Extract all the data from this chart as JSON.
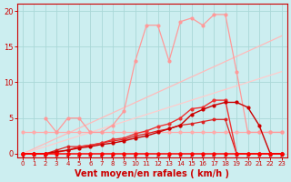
{
  "background_color": "#cceef0",
  "grid_color": "#aad8d8",
  "xlabel": "Vent moyen/en rafales ( km/h )",
  "xlabel_color": "#cc0000",
  "tick_label_color": "#cc0000",
  "axis_label_fontsize": 7,
  "tick_fontsize": 5.5,
  "xlim": [
    -0.5,
    23.5
  ],
  "ylim": [
    -0.5,
    21
  ],
  "yticks": [
    0,
    5,
    10,
    15,
    20
  ],
  "xticks": [
    0,
    1,
    2,
    3,
    4,
    5,
    6,
    7,
    8,
    9,
    10,
    11,
    12,
    13,
    14,
    15,
    16,
    17,
    18,
    19,
    20,
    21,
    22,
    23
  ],
  "lines": [
    {
      "x": [
        0,
        23
      ],
      "y": [
        0,
        16.5
      ],
      "color": "#ffbbbb",
      "linewidth": 0.9,
      "marker": null,
      "markersize": 0,
      "zorder": 2
    },
    {
      "x": [
        0,
        23
      ],
      "y": [
        0,
        11.5
      ],
      "color": "#ffcccc",
      "linewidth": 0.9,
      "marker": null,
      "markersize": 0,
      "zorder": 2
    },
    {
      "x": [
        0,
        1,
        2,
        3,
        4,
        5,
        6,
        7,
        8,
        9,
        10,
        11,
        12,
        13,
        14,
        15,
        16,
        17,
        18,
        19,
        20,
        21,
        22,
        23
      ],
      "y": [
        3,
        3,
        3,
        3,
        3,
        3,
        3,
        3,
        3,
        3,
        3,
        3,
        3,
        3,
        3,
        3,
        3,
        3,
        3,
        3,
        3,
        3,
        3,
        3
      ],
      "color": "#ffaaaa",
      "linewidth": 0.9,
      "marker": "o",
      "markersize": 2.0,
      "zorder": 3
    },
    {
      "x": [
        2,
        3,
        4,
        5,
        6,
        7,
        8,
        9,
        10,
        11,
        12,
        13,
        14,
        15,
        16,
        17,
        18,
        19,
        20,
        21,
        22,
        23
      ],
      "y": [
        5,
        3,
        5,
        5,
        3,
        3,
        4,
        6,
        13,
        18,
        18,
        13,
        18.5,
        19,
        18,
        19.5,
        19.5,
        11.5,
        3,
        3,
        3,
        3
      ],
      "color": "#ff9999",
      "linewidth": 0.9,
      "marker": "o",
      "markersize": 2.0,
      "zorder": 3
    },
    {
      "x": [
        0,
        1,
        2,
        3,
        4,
        5,
        6,
        7,
        8,
        9,
        10,
        11,
        12,
        13,
        14,
        15,
        16,
        17,
        18,
        19,
        20,
        21,
        22,
        23
      ],
      "y": [
        0,
        0,
        0,
        0.2,
        0.5,
        1,
        1.2,
        1.5,
        2,
        2.2,
        2.8,
        3.2,
        3.8,
        4.2,
        5,
        6.3,
        6.5,
        7.5,
        7.5,
        0,
        0,
        0,
        0,
        0
      ],
      "color": "#ee3333",
      "linewidth": 1.0,
      "marker": "o",
      "markersize": 2.0,
      "zorder": 5
    },
    {
      "x": [
        0,
        1,
        2,
        3,
        4,
        5,
        6,
        7,
        8,
        9,
        10,
        11,
        12,
        13,
        14,
        15,
        16,
        17,
        18,
        19,
        20,
        21,
        22,
        23
      ],
      "y": [
        0,
        0,
        0,
        0.3,
        0.5,
        0.8,
        1.0,
        1.3,
        1.5,
        1.8,
        2.2,
        2.5,
        3.0,
        3.5,
        4.0,
        5.5,
        6.2,
        6.8,
        7.2,
        7.2,
        6.5,
        4.0,
        0,
        0
      ],
      "color": "#cc0000",
      "linewidth": 1.0,
      "marker": "o",
      "markersize": 2.0,
      "zorder": 5
    },
    {
      "x": [
        0,
        1,
        2,
        3,
        4,
        5,
        6,
        7,
        8,
        9,
        10,
        11,
        12,
        13,
        14,
        15,
        16,
        17,
        18,
        19,
        20,
        21,
        22,
        23
      ],
      "y": [
        0,
        0,
        0,
        0.5,
        1,
        1,
        1.2,
        1.5,
        1.8,
        2.0,
        2.5,
        2.8,
        3.2,
        3.5,
        4.0,
        4.2,
        4.5,
        4.8,
        4.8,
        0,
        0,
        0,
        0,
        0
      ],
      "color": "#dd2222",
      "linewidth": 0.9,
      "marker": "o",
      "markersize": 1.8,
      "zorder": 4
    },
    {
      "x": [
        0,
        1,
        2,
        3,
        4,
        5,
        6,
        7,
        8,
        9,
        10,
        11,
        12,
        13,
        14,
        15,
        16,
        17,
        18,
        19,
        20,
        21,
        22,
        23
      ],
      "y": [
        0,
        0,
        0,
        0,
        0,
        0,
        0,
        0,
        0,
        0,
        0,
        0,
        0,
        0,
        0,
        0,
        0,
        0,
        0,
        0,
        0,
        0,
        0,
        0
      ],
      "color": "#ff0000",
      "linewidth": 1.1,
      "marker": "o",
      "markersize": 2.2,
      "zorder": 6
    }
  ],
  "wind_arrows": {
    "x": [
      0,
      1,
      2,
      3,
      4,
      5,
      6,
      7,
      8,
      9,
      10,
      11,
      12,
      13,
      14,
      15,
      16,
      17,
      18,
      19,
      20,
      21,
      22,
      23
    ],
    "angles": [
      225,
      315,
      270,
      315,
      270,
      270,
      270,
      270,
      90,
      315,
      270,
      315,
      315,
      270,
      315,
      315,
      315,
      45,
      315,
      315,
      315,
      315,
      315,
      315
    ]
  }
}
